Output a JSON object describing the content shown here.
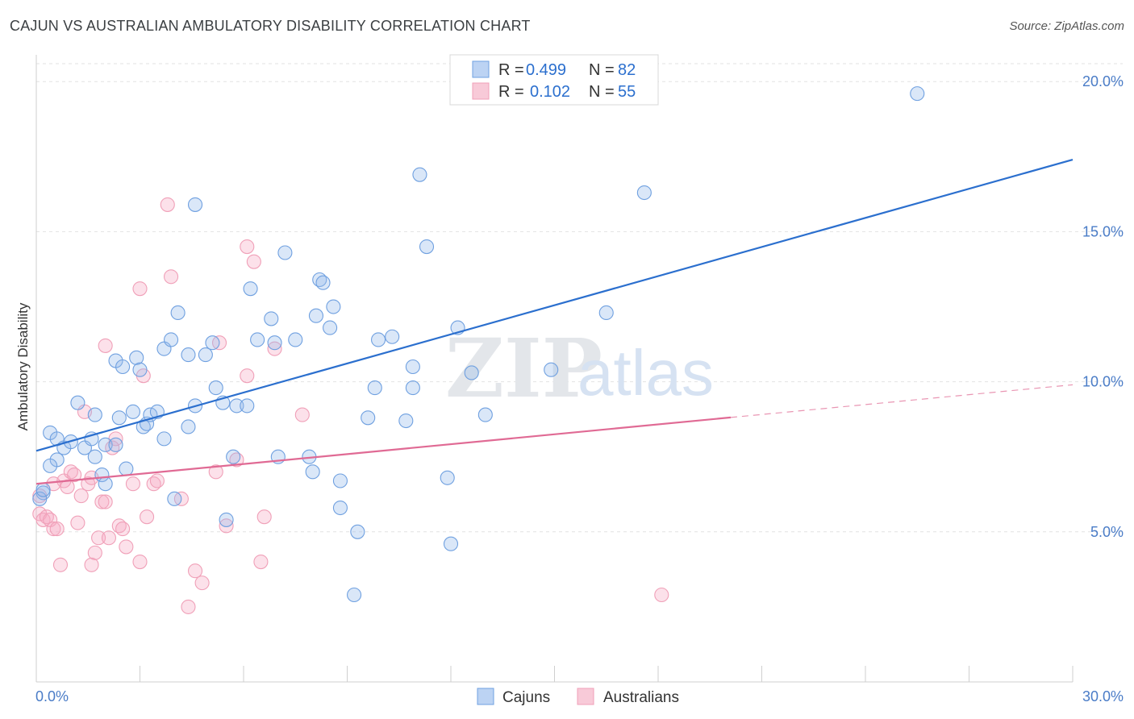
{
  "header": {
    "title": "CAJUN VS AUSTRALIAN AMBULATORY DISABILITY CORRELATION CHART",
    "source": "Source: ZipAtlas.com"
  },
  "watermark": {
    "zip": "ZIP",
    "atlas": "atlas"
  },
  "legend": {
    "items": [
      {
        "r_label": "R =",
        "r_value": "0.499",
        "n_label": "N =",
        "n_value": "82",
        "color": "#6fa0e0"
      },
      {
        "r_label": "R =",
        "r_value": "0.102",
        "n_label": "N =",
        "n_value": "55",
        "color": "#f0a0b8"
      }
    ]
  },
  "chart_data": {
    "type": "scatter",
    "title": "CAJUN VS AUSTRALIAN AMBULATORY DISABILITY CORRELATION CHART",
    "xlabel": "",
    "ylabel": "Ambulatory Disability",
    "xlim": [
      0,
      30
    ],
    "ylim": [
      0,
      21
    ],
    "x_tick_labels": [
      "0.0%",
      "30.0%"
    ],
    "y_ticks": [
      5,
      10,
      15,
      20
    ],
    "y_tick_labels": [
      "5.0%",
      "10.0%",
      "15.0%",
      "20.0%"
    ],
    "grid": "horizontal dashed",
    "legend_position": "top-center",
    "series": [
      {
        "name": "Cajuns",
        "color": "#6fa0e0",
        "line_color": "#2b6fce",
        "trend": {
          "x": [
            0,
            30
          ],
          "y": [
            7.7,
            17.4
          ],
          "dashed_from": null
        },
        "points": [
          [
            0.2,
            6.3
          ],
          [
            0.4,
            8.3
          ],
          [
            0.6,
            7.4
          ],
          [
            0.6,
            8.1
          ],
          [
            0.8,
            7.8
          ],
          [
            1.0,
            8.0
          ],
          [
            0.4,
            7.2
          ],
          [
            1.2,
            9.3
          ],
          [
            1.4,
            7.8
          ],
          [
            1.6,
            8.1
          ],
          [
            1.7,
            7.5
          ],
          [
            1.7,
            8.9
          ],
          [
            2.0,
            7.9
          ],
          [
            1.9,
            6.9
          ],
          [
            2.0,
            6.6
          ],
          [
            2.3,
            7.9
          ],
          [
            2.3,
            10.7
          ],
          [
            2.4,
            8.8
          ],
          [
            2.5,
            10.5
          ],
          [
            2.6,
            7.1
          ],
          [
            2.8,
            9.0
          ],
          [
            2.9,
            10.8
          ],
          [
            3.0,
            10.4
          ],
          [
            3.1,
            8.5
          ],
          [
            3.2,
            8.6
          ],
          [
            3.3,
            8.9
          ],
          [
            3.5,
            9.0
          ],
          [
            3.7,
            11.1
          ],
          [
            3.7,
            8.1
          ],
          [
            3.9,
            11.4
          ],
          [
            4.0,
            6.1
          ],
          [
            4.1,
            12.3
          ],
          [
            4.4,
            8.5
          ],
          [
            4.4,
            10.9
          ],
          [
            4.6,
            9.2
          ],
          [
            4.6,
            15.9
          ],
          [
            4.9,
            10.9
          ],
          [
            5.1,
            11.3
          ],
          [
            5.2,
            9.8
          ],
          [
            5.4,
            9.3
          ],
          [
            5.5,
            5.4
          ],
          [
            5.7,
            7.5
          ],
          [
            5.8,
            9.2
          ],
          [
            6.1,
            9.2
          ],
          [
            6.2,
            13.1
          ],
          [
            6.4,
            11.4
          ],
          [
            6.8,
            12.1
          ],
          [
            6.9,
            11.3
          ],
          [
            7.0,
            7.5
          ],
          [
            7.2,
            14.3
          ],
          [
            7.5,
            11.4
          ],
          [
            7.9,
            7.5
          ],
          [
            8.0,
            7.0
          ],
          [
            8.1,
            12.2
          ],
          [
            8.2,
            13.4
          ],
          [
            8.3,
            13.3
          ],
          [
            8.5,
            11.8
          ],
          [
            8.6,
            12.5
          ],
          [
            8.8,
            6.7
          ],
          [
            8.8,
            5.8
          ],
          [
            9.2,
            2.9
          ],
          [
            9.3,
            5.0
          ],
          [
            9.6,
            8.8
          ],
          [
            9.8,
            9.8
          ],
          [
            9.9,
            11.4
          ],
          [
            10.3,
            11.5
          ],
          [
            10.7,
            8.7
          ],
          [
            10.9,
            10.5
          ],
          [
            10.9,
            9.8
          ],
          [
            11.1,
            16.9
          ],
          [
            11.3,
            14.5
          ],
          [
            11.9,
            6.8
          ],
          [
            12.0,
            4.6
          ],
          [
            12.2,
            11.8
          ],
          [
            12.6,
            10.3
          ],
          [
            13.0,
            8.9
          ],
          [
            14.9,
            10.4
          ],
          [
            16.5,
            12.3
          ],
          [
            17.6,
            16.3
          ],
          [
            25.5,
            19.6
          ],
          [
            0.1,
            6.1
          ],
          [
            0.2,
            6.4
          ]
        ]
      },
      {
        "name": "Australians",
        "color": "#f0a0b8",
        "line_color": "#e06a94",
        "trend": {
          "x": [
            0,
            30
          ],
          "y": [
            6.6,
            9.9
          ],
          "dashed_from": 20.1
        },
        "points": [
          [
            0.1,
            6.2
          ],
          [
            0.1,
            5.6
          ],
          [
            0.2,
            5.4
          ],
          [
            0.3,
            5.5
          ],
          [
            0.4,
            5.4
          ],
          [
            0.5,
            5.1
          ],
          [
            0.6,
            5.1
          ],
          [
            0.7,
            3.9
          ],
          [
            0.8,
            6.7
          ],
          [
            0.9,
            6.5
          ],
          [
            1.0,
            7.0
          ],
          [
            1.1,
            6.9
          ],
          [
            1.2,
            5.3
          ],
          [
            1.3,
            6.2
          ],
          [
            1.5,
            6.6
          ],
          [
            1.6,
            6.8
          ],
          [
            1.6,
            3.9
          ],
          [
            1.7,
            4.3
          ],
          [
            1.8,
            4.8
          ],
          [
            1.9,
            6.0
          ],
          [
            2.0,
            6.0
          ],
          [
            2.1,
            4.8
          ],
          [
            2.2,
            7.8
          ],
          [
            2.3,
            8.1
          ],
          [
            2.4,
            5.2
          ],
          [
            2.5,
            5.1
          ],
          [
            2.6,
            4.5
          ],
          [
            2.8,
            6.6
          ],
          [
            3.0,
            13.1
          ],
          [
            3.0,
            4.0
          ],
          [
            3.1,
            10.2
          ],
          [
            3.2,
            5.5
          ],
          [
            3.4,
            6.6
          ],
          [
            3.5,
            6.7
          ],
          [
            3.8,
            15.9
          ],
          [
            3.9,
            13.5
          ],
          [
            4.2,
            6.1
          ],
          [
            4.4,
            2.5
          ],
          [
            4.6,
            3.7
          ],
          [
            4.8,
            3.3
          ],
          [
            5.2,
            7.0
          ],
          [
            5.3,
            11.3
          ],
          [
            5.5,
            5.2
          ],
          [
            5.8,
            7.4
          ],
          [
            6.1,
            10.2
          ],
          [
            6.1,
            14.5
          ],
          [
            6.3,
            14.0
          ],
          [
            6.5,
            4.0
          ],
          [
            6.6,
            5.5
          ],
          [
            6.9,
            11.1
          ],
          [
            7.7,
            8.9
          ],
          [
            18.1,
            2.9
          ],
          [
            2.0,
            11.2
          ],
          [
            1.4,
            9.0
          ],
          [
            0.5,
            6.6
          ]
        ]
      }
    ]
  },
  "bottom_legend": {
    "items": [
      "Cajuns",
      "Australians"
    ]
  }
}
